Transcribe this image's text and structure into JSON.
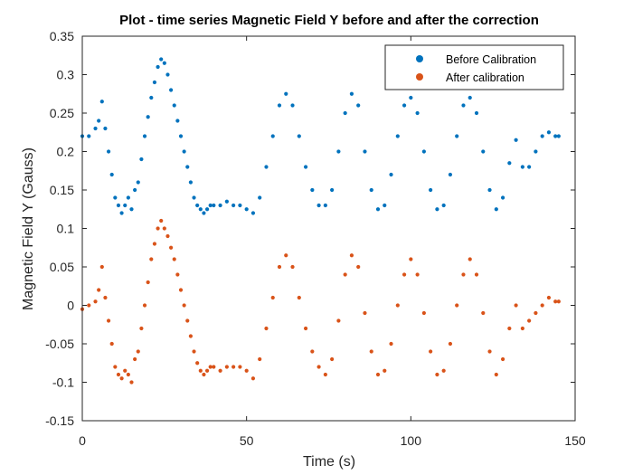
{
  "colors": {
    "before": "#0072BD",
    "after": "#D95319",
    "axis": "#262626"
  },
  "chart_data": {
    "type": "scatter",
    "title": "Plot - time series Magnetic Field Y before and after the correction",
    "xlabel": "Time (s)",
    "ylabel": "Magnetic Field Y (Gauss)",
    "xlim": [
      0,
      150
    ],
    "ylim": [
      -0.15,
      0.35
    ],
    "xticks": [
      0,
      50,
      100,
      150
    ],
    "yticks": [
      -0.15,
      -0.1,
      -0.05,
      0,
      0.05,
      0.1,
      0.15,
      0.2,
      0.25,
      0.3,
      0.35
    ],
    "xtick_labels": [
      "0",
      "50",
      "100",
      "150"
    ],
    "ytick_labels": [
      "-0.15",
      "-0.1",
      "-0.05",
      "0",
      "0.05",
      "0.1",
      "0.15",
      "0.2",
      "0.25",
      "0.3",
      "0.35"
    ],
    "legend_placement": "top-right",
    "grid": false,
    "series": [
      {
        "name": "Before Calibration",
        "color": "#0072BD",
        "x": [
          0,
          2,
          4,
          5,
          6,
          7,
          8,
          9,
          10,
          11,
          12,
          13,
          14,
          15,
          16,
          17,
          18,
          19,
          20,
          21,
          22,
          23,
          24,
          25,
          26,
          27,
          28,
          29,
          30,
          31,
          32,
          33,
          34,
          35,
          36,
          37,
          38,
          39,
          40,
          42,
          44,
          46,
          48,
          50,
          52,
          54,
          56,
          58,
          60,
          62,
          64,
          66,
          68,
          70,
          72,
          74,
          76,
          78,
          80,
          82,
          84,
          86,
          88,
          90,
          92,
          94,
          96,
          98,
          100,
          102,
          104,
          106,
          108,
          110,
          112,
          114,
          116,
          118,
          120,
          122,
          124,
          126,
          128,
          130,
          132,
          134,
          136,
          138,
          140,
          142,
          144,
          145
        ],
        "y": [
          0.22,
          0.22,
          0.23,
          0.24,
          0.265,
          0.23,
          0.2,
          0.17,
          0.14,
          0.13,
          0.12,
          0.13,
          0.14,
          0.125,
          0.15,
          0.16,
          0.19,
          0.22,
          0.245,
          0.27,
          0.29,
          0.31,
          0.32,
          0.315,
          0.3,
          0.28,
          0.26,
          0.24,
          0.22,
          0.2,
          0.18,
          0.16,
          0.14,
          0.13,
          0.125,
          0.12,
          0.125,
          0.13,
          0.13,
          0.13,
          0.135,
          0.13,
          0.13,
          0.125,
          0.12,
          0.14,
          0.18,
          0.22,
          0.26,
          0.275,
          0.26,
          0.22,
          0.18,
          0.15,
          0.13,
          0.13,
          0.15,
          0.2,
          0.25,
          0.275,
          0.26,
          0.2,
          0.15,
          0.125,
          0.13,
          0.17,
          0.22,
          0.26,
          0.27,
          0.25,
          0.2,
          0.15,
          0.125,
          0.13,
          0.17,
          0.22,
          0.26,
          0.27,
          0.25,
          0.2,
          0.15,
          0.125,
          0.14,
          0.185,
          0.215,
          0.18,
          0.18,
          0.2,
          0.22,
          0.225,
          0.22,
          0.22
        ]
      },
      {
        "name": "After calibration",
        "color": "#D95319",
        "x": [
          0,
          2,
          4,
          5,
          6,
          7,
          8,
          9,
          10,
          11,
          12,
          13,
          14,
          15,
          16,
          17,
          18,
          19,
          20,
          21,
          22,
          23,
          24,
          25,
          26,
          27,
          28,
          29,
          30,
          31,
          32,
          33,
          34,
          35,
          36,
          37,
          38,
          39,
          40,
          42,
          44,
          46,
          48,
          50,
          52,
          54,
          56,
          58,
          60,
          62,
          64,
          66,
          68,
          70,
          72,
          74,
          76,
          78,
          80,
          82,
          84,
          86,
          88,
          90,
          92,
          94,
          96,
          98,
          100,
          102,
          104,
          106,
          108,
          110,
          112,
          114,
          116,
          118,
          120,
          122,
          124,
          126,
          128,
          130,
          132,
          134,
          136,
          138,
          140,
          142,
          144,
          145
        ],
        "y": [
          -0.005,
          0.0,
          0.005,
          0.02,
          0.05,
          0.01,
          -0.02,
          -0.05,
          -0.08,
          -0.09,
          -0.095,
          -0.085,
          -0.09,
          -0.1,
          -0.07,
          -0.06,
          -0.03,
          0.0,
          0.03,
          0.06,
          0.08,
          0.1,
          0.11,
          0.1,
          0.09,
          0.075,
          0.06,
          0.04,
          0.02,
          0.0,
          -0.02,
          -0.04,
          -0.06,
          -0.075,
          -0.085,
          -0.09,
          -0.085,
          -0.08,
          -0.08,
          -0.085,
          -0.08,
          -0.08,
          -0.08,
          -0.085,
          -0.095,
          -0.07,
          -0.03,
          0.01,
          0.05,
          0.065,
          0.05,
          0.01,
          -0.03,
          -0.06,
          -0.08,
          -0.09,
          -0.07,
          -0.02,
          0.04,
          0.065,
          0.05,
          -0.01,
          -0.06,
          -0.09,
          -0.085,
          -0.05,
          0.0,
          0.04,
          0.06,
          0.04,
          -0.01,
          -0.06,
          -0.09,
          -0.085,
          -0.05,
          0.0,
          0.04,
          0.06,
          0.04,
          -0.01,
          -0.06,
          -0.09,
          -0.07,
          -0.03,
          0.0,
          -0.03,
          -0.02,
          -0.01,
          0.0,
          0.01,
          0.005,
          0.005
        ]
      }
    ]
  }
}
